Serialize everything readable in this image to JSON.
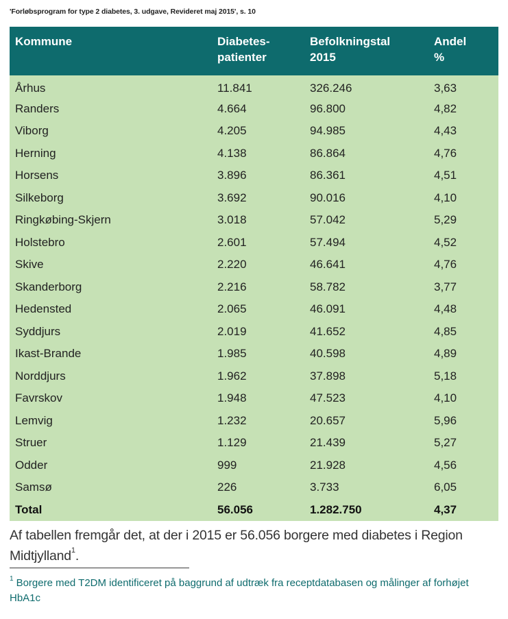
{
  "caption": "'Forløbsprogram for type 2 diabetes, 3. udgave, Revideret maj 2015', s. 10",
  "table": {
    "headers": {
      "kommune": "Kommune",
      "diabetes_line1": "Diabetes-",
      "diabetes_line2": "patienter",
      "befolkning_line1": "Befolkningstal",
      "befolkning_line2": "2015",
      "andel_line1": "Andel",
      "andel_line2": "%"
    },
    "rows": [
      {
        "kommune": "Århus",
        "patienter": "11.841",
        "befolkning": "326.246",
        "andel": "3,63"
      },
      {
        "kommune": "Randers",
        "patienter": "4.664",
        "befolkning": "96.800",
        "andel": "4,82"
      },
      {
        "kommune": "Viborg",
        "patienter": "4.205",
        "befolkning": "94.985",
        "andel": "4,43"
      },
      {
        "kommune": "Herning",
        "patienter": "4.138",
        "befolkning": "86.864",
        "andel": "4,76"
      },
      {
        "kommune": "Horsens",
        "patienter": "3.896",
        "befolkning": "86.361",
        "andel": "4,51"
      },
      {
        "kommune": "Silkeborg",
        "patienter": "3.692",
        "befolkning": "90.016",
        "andel": "4,10"
      },
      {
        "kommune": "Ringkøbing-Skjern",
        "patienter": "3.018",
        "befolkning": "57.042",
        "andel": "5,29"
      },
      {
        "kommune": "Holstebro",
        "patienter": "2.601",
        "befolkning": "57.494",
        "andel": "4,52"
      },
      {
        "kommune": "Skive",
        "patienter": "2.220",
        "befolkning": "46.641",
        "andel": "4,76"
      },
      {
        "kommune": "Skanderborg",
        "patienter": "2.216",
        "befolkning": "58.782",
        "andel": "3,77"
      },
      {
        "kommune": "Hedensted",
        "patienter": "2.065",
        "befolkning": "46.091",
        "andel": "4,48"
      },
      {
        "kommune": "Syddjurs",
        "patienter": "2.019",
        "befolkning": "41.652",
        "andel": "4,85"
      },
      {
        "kommune": "Ikast-Brande",
        "patienter": "1.985",
        "befolkning": "40.598",
        "andel": "4,89"
      },
      {
        "kommune": "Norddjurs",
        "patienter": "1.962",
        "befolkning": "37.898",
        "andel": "5,18"
      },
      {
        "kommune": "Favrskov",
        "patienter": "1.948",
        "befolkning": "47.523",
        "andel": "4,10"
      },
      {
        "kommune": "Lemvig",
        "patienter": "1.232",
        "befolkning": "20.657",
        "andel": "5,96"
      },
      {
        "kommune": "Struer",
        "patienter": "1.129",
        "befolkning": "21.439",
        "andel": "5,27"
      },
      {
        "kommune": "Odder",
        "patienter": "999",
        "befolkning": "21.928",
        "andel": "4,56"
      },
      {
        "kommune": "Samsø",
        "patienter": "226",
        "befolkning": "3.733",
        "andel": "6,05"
      }
    ],
    "total": {
      "kommune": "Total",
      "patienter": "56.056",
      "befolkning": "1.282.750",
      "andel": "4,37"
    }
  },
  "body_text": {
    "text": "Af tabellen fremgår det, at der i 2015 er 56.056 borgere med diabetes i Region Midtjylland",
    "footnote_ref": "1",
    "end": "."
  },
  "footnote": {
    "marker": "1",
    "text": "Borgere med T2DM identificeret på baggrund af udtræk fra receptdatabasen og målinger af forhøjet HbA1c"
  },
  "colors": {
    "header_bg": "#0e6b6d",
    "row_bg": "#c6e1b5",
    "footnote_text": "#0e6b6d"
  }
}
